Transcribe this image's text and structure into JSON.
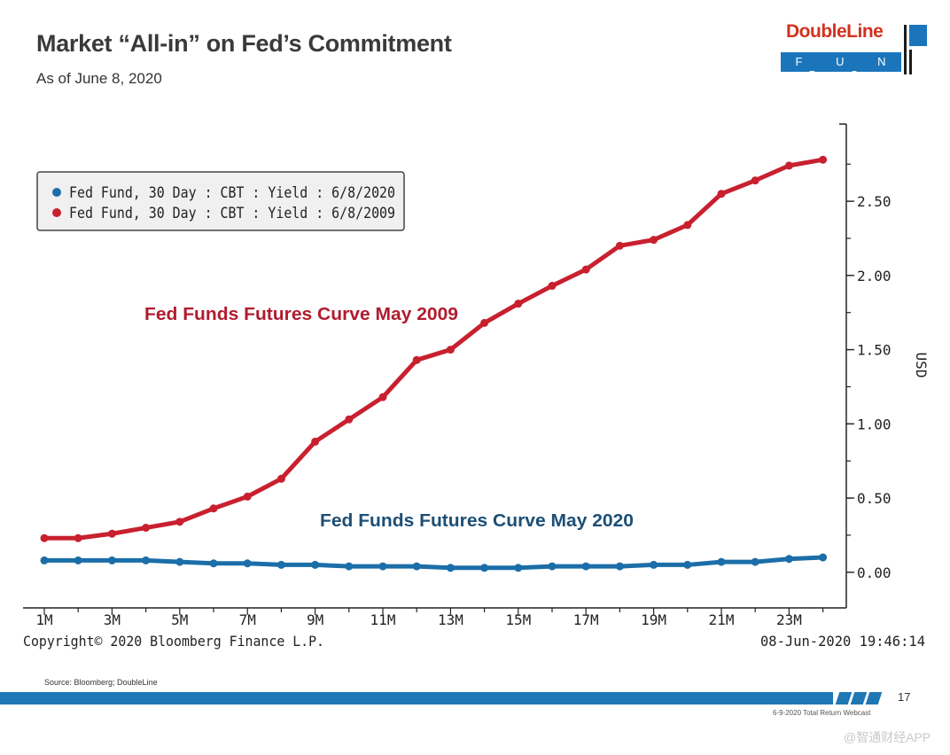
{
  "header": {
    "title": "Market “All-in” on Fed’s Commitment",
    "subtitle": "As of June 8, 2020"
  },
  "logo": {
    "name": "DoubleLine",
    "tag": "F U N D S",
    "colors": {
      "red": "#d2321f",
      "blue": "#1b75bb"
    }
  },
  "chart_data": {
    "type": "line",
    "title": "",
    "xlabel": "",
    "ylabel": "USD",
    "x": [
      "1M",
      "2M",
      "3M",
      "4M",
      "5M",
      "6M",
      "7M",
      "8M",
      "9M",
      "10M",
      "11M",
      "12M",
      "13M",
      "14M",
      "15M",
      "16M",
      "17M",
      "18M",
      "19M",
      "20M",
      "21M",
      "22M",
      "23M",
      "24M"
    ],
    "x_tick_labels": [
      "1M",
      "3M",
      "5M",
      "7M",
      "9M",
      "11M",
      "13M",
      "15M",
      "17M",
      "19M",
      "21M",
      "23M"
    ],
    "y_tick_labels": [
      "0.00",
      "0.50",
      "1.00",
      "1.50",
      "2.00",
      "2.50"
    ],
    "ylim": [
      -0.24,
      3.02
    ],
    "y_axis_side": "right",
    "grid": false,
    "legend_position": "top-left",
    "series": [
      {
        "name": "Fed Fund, 30 Day : CBT : Yield : 6/8/2020",
        "color": "#1b6ea8",
        "values": [
          0.08,
          0.08,
          0.08,
          0.08,
          0.07,
          0.06,
          0.06,
          0.05,
          0.05,
          0.04,
          0.04,
          0.04,
          0.03,
          0.03,
          0.03,
          0.04,
          0.04,
          0.04,
          0.05,
          0.05,
          0.07,
          0.07,
          0.09,
          0.1
        ]
      },
      {
        "name": "Fed Fund, 30 Day : CBT : Yield : 6/8/2009",
        "color": "#c8202f",
        "values": [
          0.23,
          0.23,
          0.26,
          0.3,
          0.34,
          0.43,
          0.51,
          0.63,
          0.88,
          1.03,
          1.18,
          1.43,
          1.5,
          1.68,
          1.81,
          1.93,
          2.04,
          2.2,
          2.24,
          2.34,
          2.55,
          2.64,
          2.74,
          2.78
        ]
      }
    ],
    "annotations": [
      {
        "text": "Fed Funds Futures Curve May 2009",
        "color": "#b01c2e"
      },
      {
        "text": "Fed Funds Futures Curve May 2020",
        "color": "#1d4f75"
      }
    ],
    "copyright": "Copyright© 2020 Bloomberg Finance L.P.",
    "timestamp": "08-Jun-2020 19:46:14"
  },
  "footer": {
    "source": "Source: Bloomberg; DoubleLine",
    "page_number": "17",
    "event": "6-9-2020 Total Return Webcast",
    "watermark": "@智通财经APP"
  }
}
